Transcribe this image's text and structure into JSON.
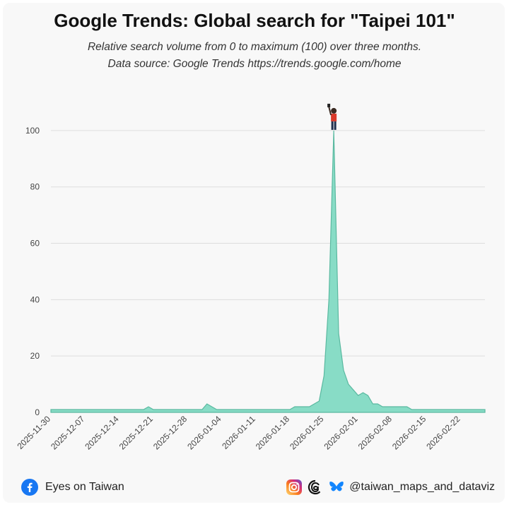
{
  "header": {
    "title": "Google Trends: Global search for \"Taipei 101\"",
    "subtitle_line1": "Relative search volume from 0 to maximum (100) over three months.",
    "subtitle_line2": "Data source: Google Trends https://trends.google.com/home"
  },
  "footer": {
    "left_label": "Eyes on Taiwan",
    "right_label": "@taiwan_maps_and_dataviz",
    "left_icon": "facebook-icon",
    "right_icons": [
      "instagram-icon",
      "threads-icon",
      "bluesky-icon"
    ]
  },
  "colors": {
    "area_fill": "#88dcc6",
    "area_stroke": "#5ab9a0",
    "grid": "#dddddd",
    "facebook": "#1877f2",
    "bluesky": "#1185fe"
  },
  "chart_data": {
    "type": "area",
    "title": "Google Trends: Global search for \"Taipei 101\"",
    "xlabel": "",
    "ylabel": "",
    "ylim": [
      0,
      110
    ],
    "yticks": [
      0,
      20,
      40,
      60,
      80,
      100
    ],
    "xticks": [
      "2025-11-30",
      "2025-12-07",
      "2025-12-14",
      "2025-12-21",
      "2025-12-28",
      "2026-01-04",
      "2026-01-11",
      "2026-01-18",
      "2026-01-25",
      "2026-02-01",
      "2026-02-08",
      "2026-02-15",
      "2026-02-22"
    ],
    "grid": true,
    "x": [
      "2025-11-30",
      "2025-12-01",
      "2025-12-02",
      "2025-12-03",
      "2025-12-04",
      "2025-12-05",
      "2025-12-06",
      "2025-12-07",
      "2025-12-08",
      "2025-12-09",
      "2025-12-10",
      "2025-12-11",
      "2025-12-12",
      "2025-12-13",
      "2025-12-14",
      "2025-12-15",
      "2025-12-16",
      "2025-12-17",
      "2025-12-18",
      "2025-12-19",
      "2025-12-20",
      "2025-12-21",
      "2025-12-22",
      "2025-12-23",
      "2025-12-24",
      "2025-12-25",
      "2025-12-26",
      "2025-12-27",
      "2025-12-28",
      "2025-12-29",
      "2025-12-30",
      "2025-12-31",
      "2026-01-01",
      "2026-01-02",
      "2026-01-03",
      "2026-01-04",
      "2026-01-05",
      "2026-01-06",
      "2026-01-07",
      "2026-01-08",
      "2026-01-09",
      "2026-01-10",
      "2026-01-11",
      "2026-01-12",
      "2026-01-13",
      "2026-01-14",
      "2026-01-15",
      "2026-01-16",
      "2026-01-17",
      "2026-01-18",
      "2026-01-19",
      "2026-01-20",
      "2026-01-21",
      "2026-01-22",
      "2026-01-23",
      "2026-01-24",
      "2026-01-25",
      "2026-01-26",
      "2026-01-27",
      "2026-01-28",
      "2026-01-29",
      "2026-01-30",
      "2026-01-31",
      "2026-02-01",
      "2026-02-02",
      "2026-02-03",
      "2026-02-04",
      "2026-02-05",
      "2026-02-06",
      "2026-02-07",
      "2026-02-08",
      "2026-02-09",
      "2026-02-10",
      "2026-02-11",
      "2026-02-12",
      "2026-02-13",
      "2026-02-14",
      "2026-02-15",
      "2026-02-16",
      "2026-02-17",
      "2026-02-18",
      "2026-02-19",
      "2026-02-20",
      "2026-02-21",
      "2026-02-22",
      "2026-02-23",
      "2026-02-24",
      "2026-02-25",
      "2026-02-26",
      "2026-02-27"
    ],
    "series": [
      {
        "values": [
          1,
          1,
          1,
          1,
          1,
          1,
          1,
          1,
          1,
          1,
          1,
          1,
          1,
          1,
          1,
          1,
          1,
          1,
          1,
          1,
          2,
          1,
          1,
          1,
          1,
          1,
          1,
          1,
          1,
          1,
          1,
          1,
          3,
          2,
          1,
          1,
          1,
          1,
          1,
          1,
          1,
          1,
          1,
          1,
          1,
          1,
          1,
          1,
          1,
          1,
          2,
          2,
          2,
          2,
          3,
          4,
          13,
          40,
          100,
          28,
          15,
          10,
          8,
          6,
          7,
          6,
          3,
          3,
          2,
          2,
          2,
          2,
          2,
          2,
          1,
          1,
          1,
          1,
          1,
          1,
          1,
          1,
          1,
          1,
          1,
          1,
          1,
          1,
          1,
          1
        ]
      }
    ]
  }
}
